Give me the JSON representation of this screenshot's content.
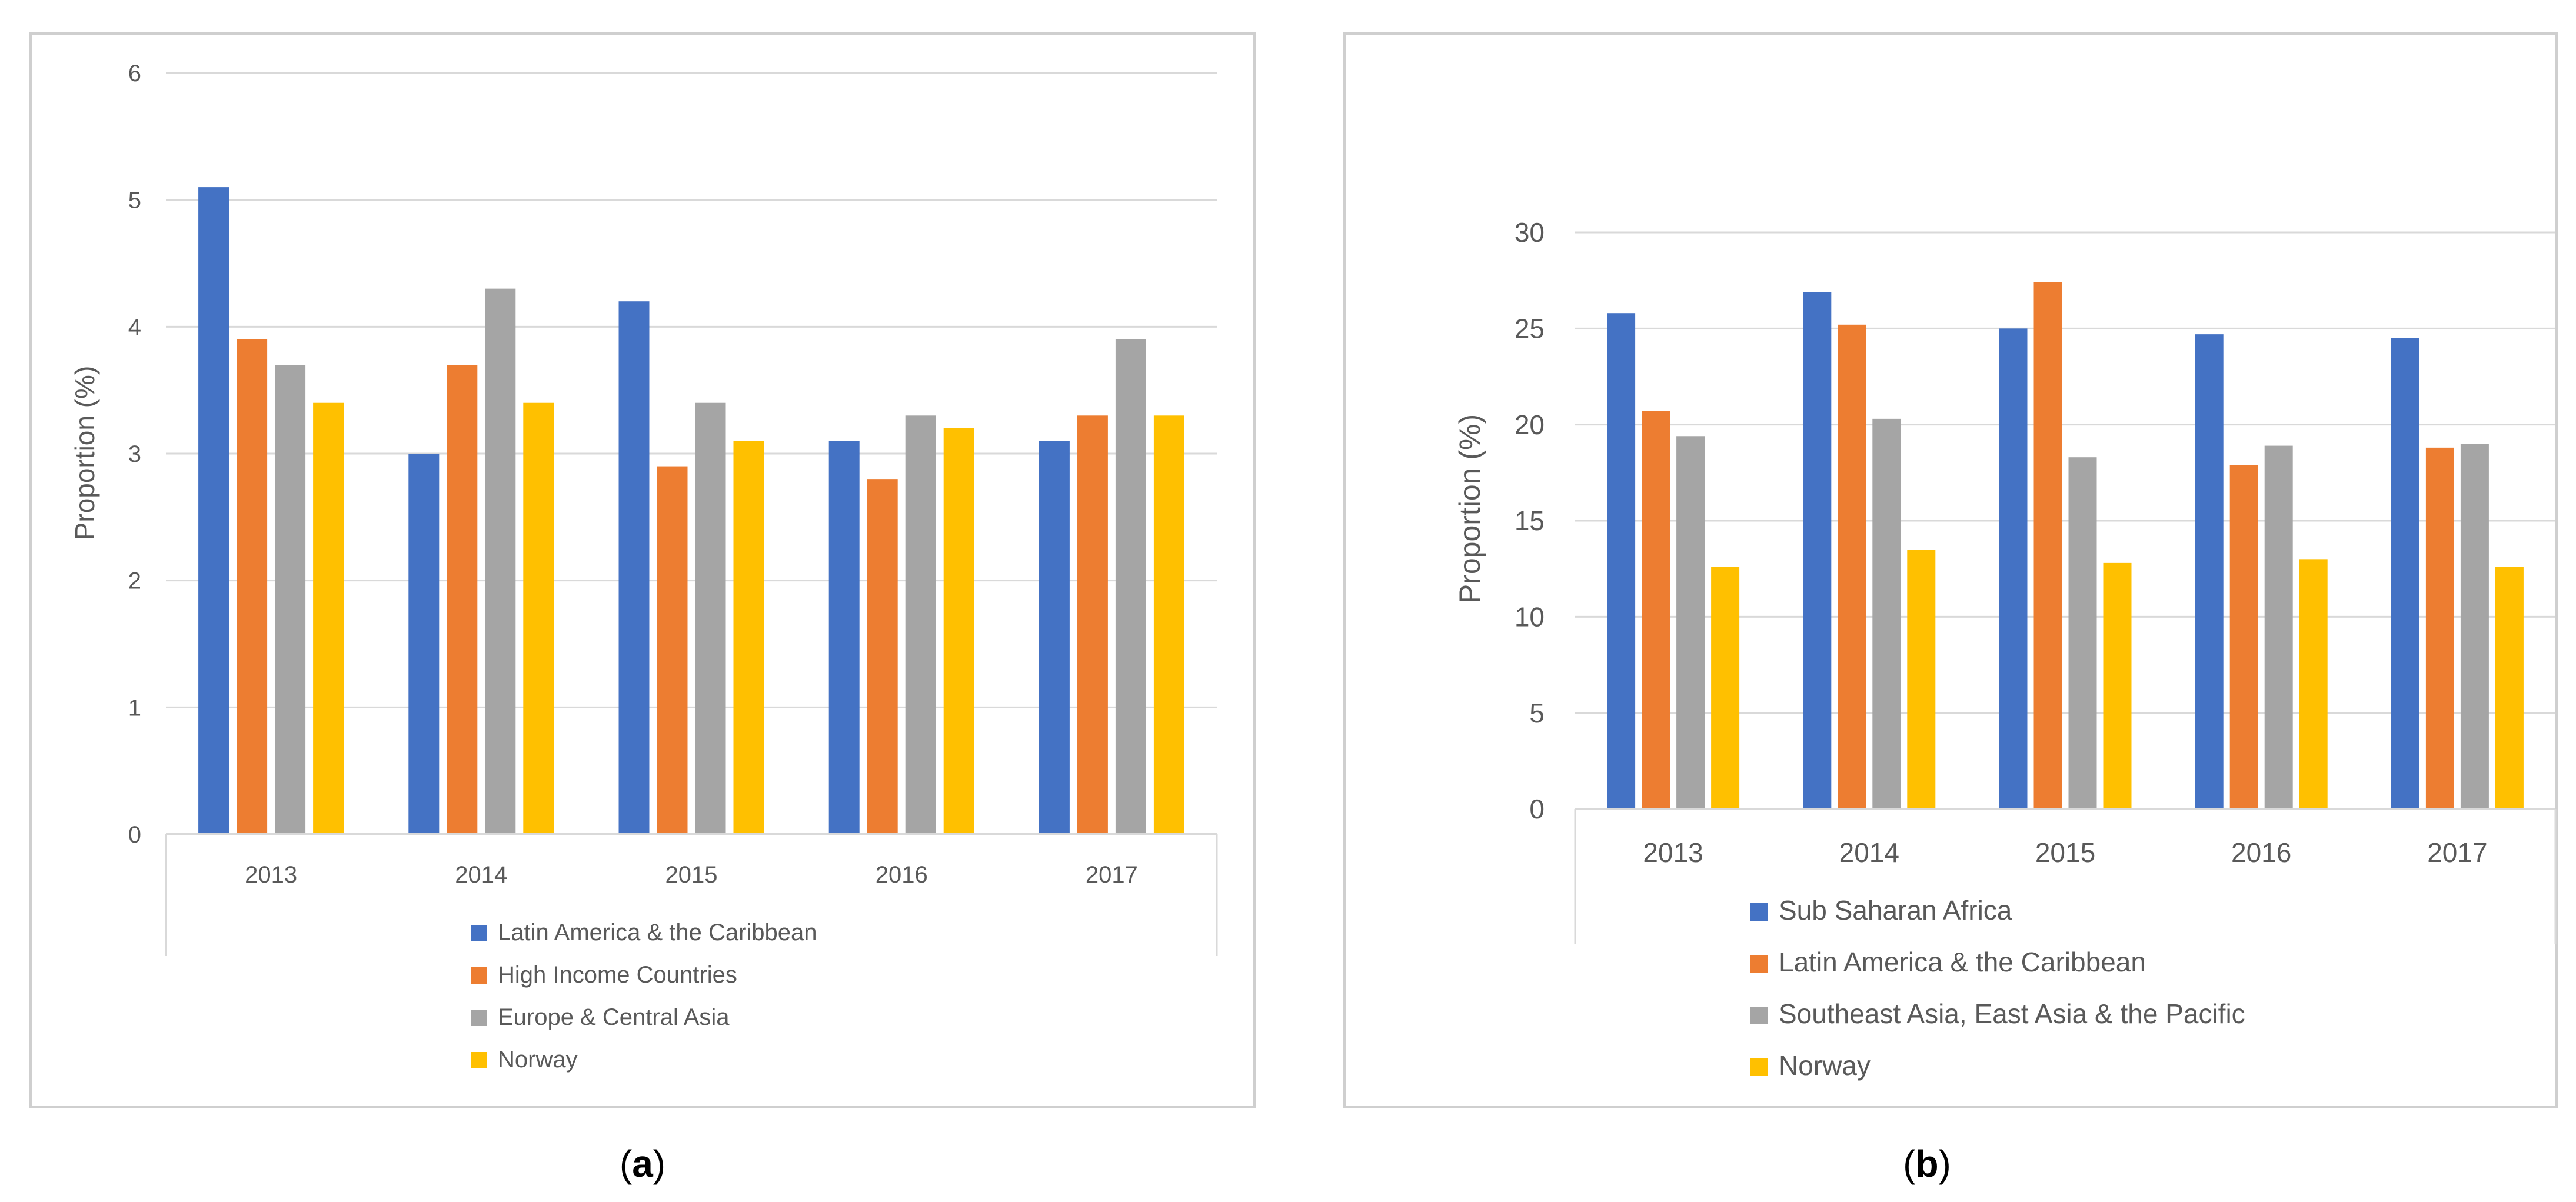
{
  "colors": {
    "blue": "#4472C4",
    "orange": "#ED7D31",
    "gray": "#A5A5A5",
    "yellow": "#FFC000",
    "grid": "#D9D9D9",
    "axis_text": "#595959",
    "frame": "#D9D9D9"
  },
  "chart_data": [
    {
      "type": "bar",
      "panel_label": "a",
      "title": "",
      "xlabel": "",
      "ylabel": "Proportion (%)",
      "ylim": [
        0,
        6
      ],
      "yticks": [
        "0",
        "1",
        "2",
        "3",
        "4",
        "5",
        "6"
      ],
      "grid": true,
      "legend_position": "bottom",
      "categories": [
        "2013",
        "2014",
        "2015",
        "2016",
        "2017"
      ],
      "series": [
        {
          "name": "Latin America & the Caribbean",
          "color": "#4472C4",
          "values": [
            5.1,
            3.0,
            4.2,
            3.1,
            3.1
          ]
        },
        {
          "name": "High Income Countries",
          "color": "#ED7D31",
          "values": [
            3.9,
            3.7,
            2.9,
            2.8,
            3.3
          ]
        },
        {
          "name": "Europe & Central Asia",
          "color": "#A5A5A5",
          "values": [
            3.7,
            4.3,
            3.4,
            3.3,
            3.9
          ]
        },
        {
          "name": "Norway",
          "color": "#FFC000",
          "values": [
            3.4,
            3.4,
            3.1,
            3.2,
            3.3
          ]
        }
      ]
    },
    {
      "type": "bar",
      "panel_label": "b",
      "title": "",
      "xlabel": "",
      "ylabel": "Proportion (%)",
      "ylim": [
        0,
        30
      ],
      "yticks": [
        "0",
        "5",
        "10",
        "15",
        "20",
        "25",
        "30"
      ],
      "grid": true,
      "legend_position": "bottom",
      "categories": [
        "2013",
        "2014",
        "2015",
        "2016",
        "2017"
      ],
      "series": [
        {
          "name": "Sub Saharan Africa",
          "color": "#4472C4",
          "values": [
            25.8,
            26.9,
            25.0,
            24.7,
            24.5
          ]
        },
        {
          "name": "Latin America & the Caribbean",
          "color": "#ED7D31",
          "values": [
            20.7,
            25.2,
            27.4,
            17.9,
            18.8
          ]
        },
        {
          "name": "Southeast Asia, East Asia & the Pacific",
          "color": "#A5A5A5",
          "values": [
            19.4,
            20.3,
            18.3,
            18.9,
            19.0
          ]
        },
        {
          "name": "Norway",
          "color": "#FFC000",
          "values": [
            12.6,
            13.5,
            12.8,
            13.0,
            12.6
          ]
        }
      ]
    }
  ]
}
